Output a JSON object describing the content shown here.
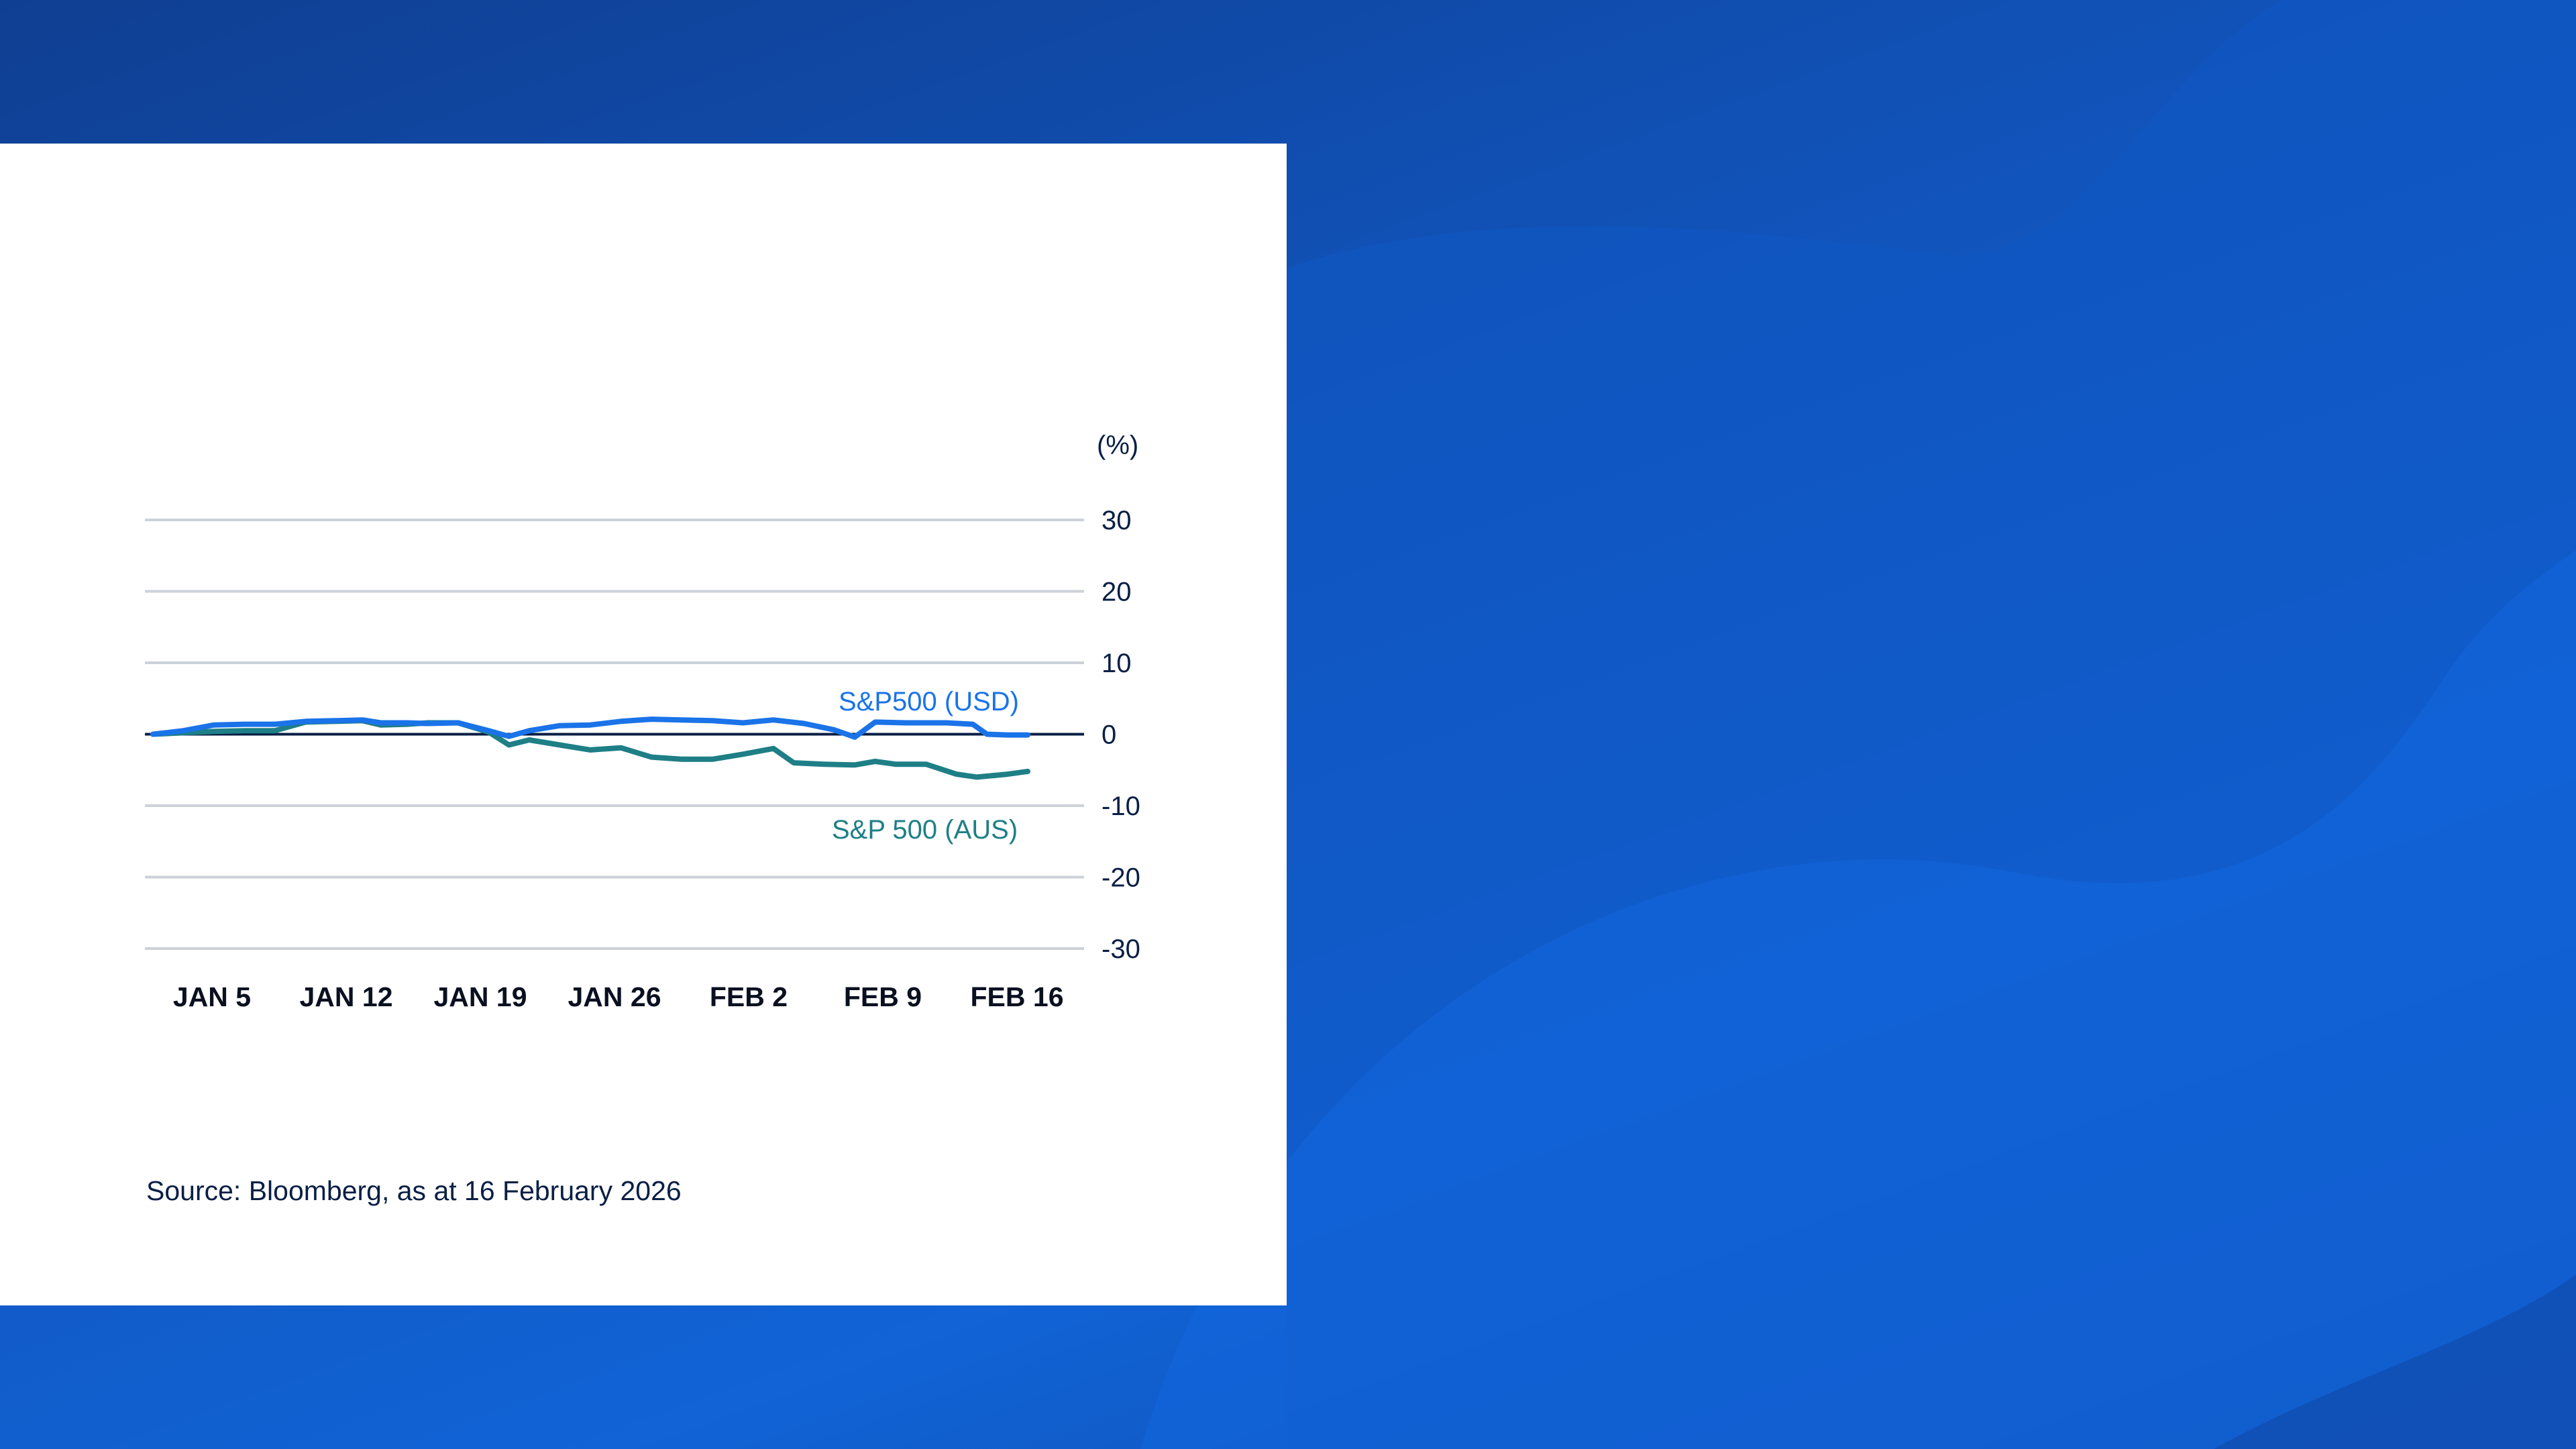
{
  "colors": {
    "usd_series": "#1a73e8",
    "aus_series": "#1e7f86",
    "zero_line": "#0a1f44",
    "grid": "#cdd2d8",
    "text": "#0a1f44"
  },
  "source_text": "Source: Bloomberg, as at 16 February 2026",
  "chart_data": {
    "type": "line",
    "title": "",
    "unit_label": "(%)",
    "ylim": [
      -30,
      30
    ],
    "y_ticks": [
      30,
      20,
      10,
      0,
      -10,
      -20,
      -30
    ],
    "y_tick_labels": [
      "30",
      "20",
      "10",
      "0",
      "-10",
      "-20",
      "-30"
    ],
    "x_range": [
      0,
      43
    ],
    "x_ticks": [
      {
        "label": "JAN 5",
        "x": 3
      },
      {
        "label": "JAN 12",
        "x": 10
      },
      {
        "label": "JAN 19",
        "x": 17
      },
      {
        "label": "JAN 26",
        "x": 24
      },
      {
        "label": "FEB 2",
        "x": 31
      },
      {
        "label": "FEB 9",
        "x": 38
      },
      {
        "label": "FEB 16",
        "x": 45
      }
    ],
    "grid": true,
    "series": [
      {
        "name": "S&P500 (USD)",
        "label": "S&P500 (USD)",
        "points": [
          [
            0,
            0
          ],
          [
            1.5,
            0.5
          ],
          [
            3,
            1.3
          ],
          [
            4.5,
            1.4
          ],
          [
            6,
            1.4
          ],
          [
            7.5,
            1.8
          ],
          [
            9,
            1.9
          ],
          [
            10.3,
            2.0
          ],
          [
            11.2,
            1.6
          ],
          [
            12.5,
            1.6
          ],
          [
            13.5,
            1.5
          ],
          [
            15,
            1.6
          ],
          [
            16.5,
            0.5
          ],
          [
            17.5,
            -0.3
          ],
          [
            18.5,
            0.5
          ],
          [
            20,
            1.2
          ],
          [
            21.5,
            1.3
          ],
          [
            23,
            1.8
          ],
          [
            24.5,
            2.1
          ],
          [
            26,
            2.0
          ],
          [
            27.5,
            1.9
          ],
          [
            29,
            1.6
          ],
          [
            30.5,
            2.0
          ],
          [
            32,
            1.5
          ],
          [
            33.5,
            0.6
          ],
          [
            34.5,
            -0.4
          ],
          [
            35.5,
            1.7
          ],
          [
            37,
            1.6
          ],
          [
            39,
            1.6
          ],
          [
            40.3,
            1.4
          ],
          [
            41,
            0
          ],
          [
            42,
            -0.1
          ],
          [
            43,
            -0.1
          ]
        ]
      },
      {
        "name": "S&P 500 (AUS)",
        "label": "S&P 500 (AUS)",
        "points": [
          [
            0,
            0
          ],
          [
            1.5,
            0.2
          ],
          [
            3,
            0.4
          ],
          [
            4.5,
            0.5
          ],
          [
            6,
            0.5
          ],
          [
            7.5,
            1.7
          ],
          [
            9,
            1.8
          ],
          [
            10.3,
            1.9
          ],
          [
            11.2,
            1.3
          ],
          [
            12.5,
            1.4
          ],
          [
            13.5,
            1.6
          ],
          [
            15,
            1.6
          ],
          [
            16.5,
            0.3
          ],
          [
            17.5,
            -1.5
          ],
          [
            18.5,
            -0.8
          ],
          [
            20,
            -1.5
          ],
          [
            21.5,
            -2.2
          ],
          [
            23,
            -1.9
          ],
          [
            24.5,
            -3.2
          ],
          [
            26,
            -3.5
          ],
          [
            27.5,
            -3.5
          ],
          [
            29,
            -2.8
          ],
          [
            30.5,
            -2.0
          ],
          [
            31.5,
            -4.0
          ],
          [
            33,
            -4.2
          ],
          [
            34.5,
            -4.3
          ],
          [
            35.5,
            -3.8
          ],
          [
            36.5,
            -4.2
          ],
          [
            38,
            -4.2
          ],
          [
            39.5,
            -5.6
          ],
          [
            40.5,
            -6.0
          ],
          [
            42,
            -5.6
          ],
          [
            43,
            -5.2
          ]
        ]
      }
    ]
  }
}
